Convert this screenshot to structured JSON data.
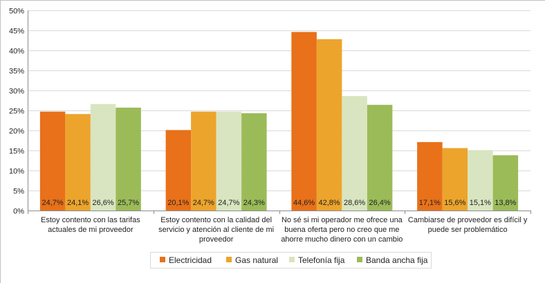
{
  "chart_data": {
    "type": "bar",
    "title": "",
    "xlabel": "",
    "ylabel": "",
    "ylim": [
      0,
      50
    ],
    "y_ticks": [
      "0%",
      "5%",
      "10%",
      "15%",
      "20%",
      "25%",
      "30%",
      "35%",
      "40%",
      "45%",
      "50%"
    ],
    "grid": true,
    "legend_position": "bottom",
    "categories": [
      [
        "Estoy contento con las tarifas",
        "actuales de mi proveedor"
      ],
      [
        "Estoy contento con la calidad del",
        "servicio y atención al cliente de mi",
        "proveedor"
      ],
      [
        "No sé si mi operador me ofrece una",
        "buena oferta pero no creo que me",
        "ahorre mucho dinero con un cambio"
      ],
      [
        "Cambiarse de proveedor es difícil y",
        "puede ser problemático"
      ]
    ],
    "series": [
      {
        "name": "Electricidad",
        "color": "#e8711a",
        "values": [
          24.7,
          20.1,
          44.6,
          17.1
        ],
        "labels": [
          "24,7%",
          "20,1%",
          "44,6%",
          "17,1%"
        ]
      },
      {
        "name": "Gas natural",
        "color": "#eca42c",
        "values": [
          24.1,
          24.7,
          42.8,
          15.6
        ],
        "labels": [
          "24,1%",
          "24,7%",
          "42,8%",
          "15,6%"
        ]
      },
      {
        "name": "Telefonía fija",
        "color": "#d9e5c0",
        "values": [
          26.6,
          24.7,
          28.6,
          15.1
        ],
        "labels": [
          "26,6%",
          "24,7%",
          "28,6%",
          "15,1%"
        ]
      },
      {
        "name": "Banda ancha fija",
        "color": "#9bbb59",
        "values": [
          25.7,
          24.3,
          26.4,
          13.8
        ],
        "labels": [
          "25,7%",
          "24,3%",
          "26,4%",
          "13,8%"
        ]
      }
    ]
  }
}
